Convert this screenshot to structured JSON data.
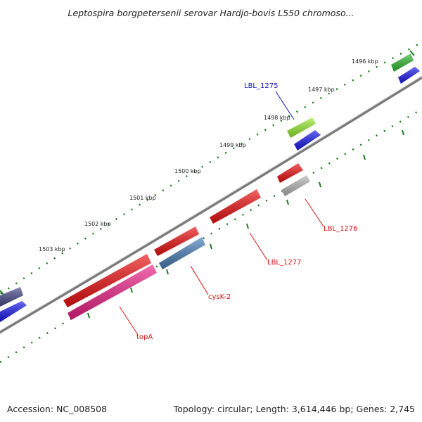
{
  "title": "Leptospira borgpetersenii serovar Hardjo-bovis L550 chromoso...",
  "ticks": [
    "1496 kbp",
    "1497 kbp",
    "1498 kbp",
    "1499 kbp",
    "1500 kbp",
    "1501 kbp",
    "1502 kbp",
    "1503 kbp"
  ],
  "gene_labels": {
    "lbl1275": "LBL_1275",
    "lbl1276": "LBL_1276",
    "lbl1277": "LBL_1277",
    "cysk2": "cysK-2",
    "topa": "topA"
  },
  "colors": {
    "backbone": "#7a7a7a",
    "tick_green": "#1f7a1f",
    "label_blue": "#1010cc",
    "label_red": "#dd1111",
    "gene_red": "#ee1111",
    "gene_pink": "#ee2288",
    "gene_blue": "#1a1aee",
    "gene_steelblue": "#4a7fb8",
    "gene_gray": "#b8b8b8",
    "gene_lime": "#99ee33",
    "gene_green": "#33bb33",
    "gene_slate": "#4a4a8c"
  },
  "footer": {
    "accession": "Accession: NC_008508",
    "summary": "Topology: circular; Length: 3,614,446 bp; Genes: 2,745"
  }
}
